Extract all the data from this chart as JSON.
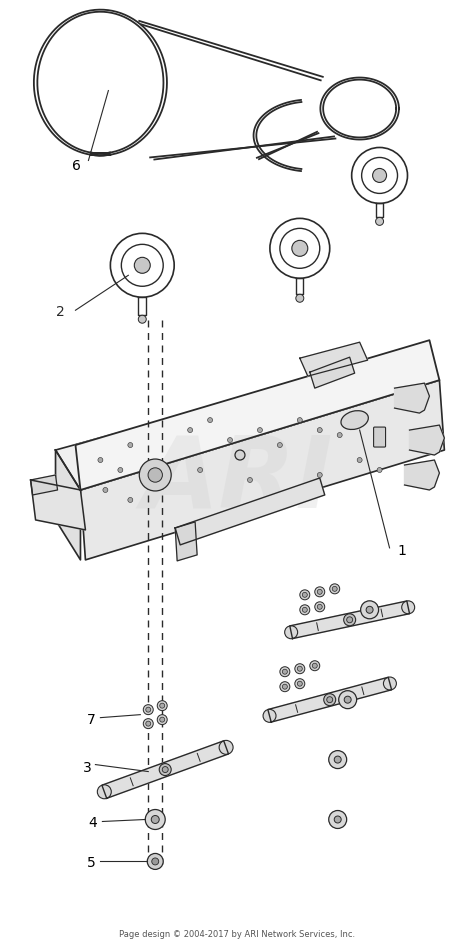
{
  "footer": "Page design © 2004-2017 by ARI Network Services, Inc.",
  "bg": "#ffffff",
  "lc": "#2a2a2a",
  "belt_lw": 1.3,
  "watermark": "ARI",
  "wm_color": "#d0d0d0",
  "figsize": [
    4.74,
    9.49
  ],
  "dpi": 100
}
